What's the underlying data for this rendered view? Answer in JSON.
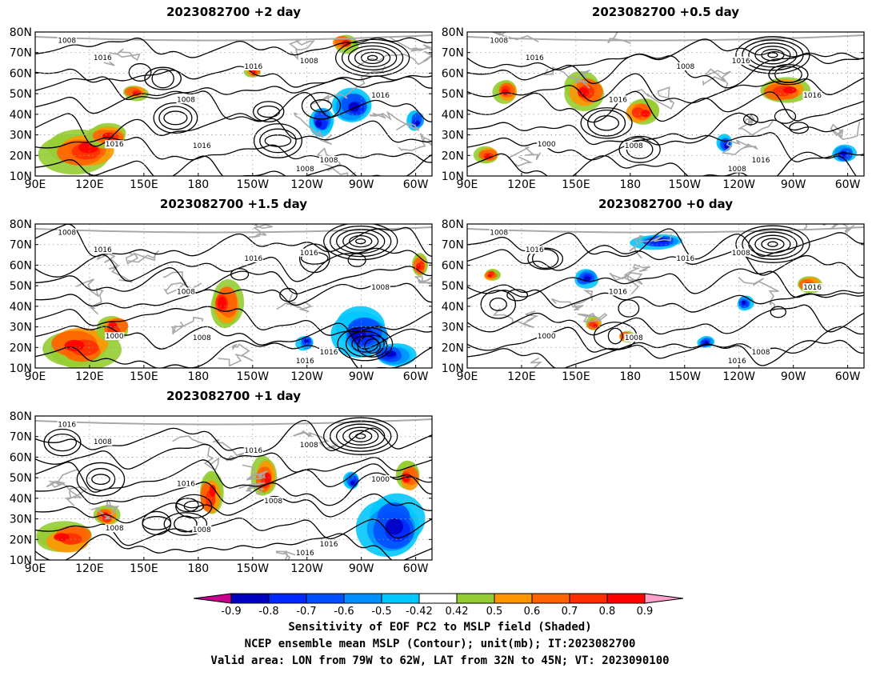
{
  "panels": [
    {
      "title": "2023082700  +2 day"
    },
    {
      "title": "2023082700  +0.5 day"
    },
    {
      "title": "2023082700  +1.5 day"
    },
    {
      "title": "2023082700  +0 day"
    },
    {
      "title": "2023082700  +1 day"
    }
  ],
  "axes": {
    "lat_ticks": [
      "10N",
      "20N",
      "30N",
      "40N",
      "50N",
      "60N",
      "70N",
      "80N"
    ],
    "lon_ticks": [
      "90E",
      "120E",
      "150E",
      "180",
      "150W",
      "120W",
      "90W",
      "60W"
    ]
  },
  "colorbar": {
    "labels": [
      "-0.9",
      "-0.8",
      "-0.7",
      "-0.6",
      "-0.5",
      "-0.42",
      "0.42",
      "0.5",
      "0.6",
      "0.7",
      "0.8",
      "0.9"
    ],
    "colors": [
      "#c8008c",
      "#0000c0",
      "#0028ff",
      "#0050ff",
      "#0090ff",
      "#00c8ff",
      "#ffffff",
      "#96cd32",
      "#ff9600",
      "#ff6400",
      "#ff2d00",
      "#ff0000",
      "#ffa0c8"
    ]
  },
  "captions": {
    "line1": "Sensitivity of EOF PC2 to MSLP field (Shaded)",
    "line2": "NCEP ensemble mean MSLP (Contour); unit(mb); IT:2023082700",
    "line3": "Valid area: LON from 79W to 62W, LAT from 32N to 45N; VT: 2023090100"
  },
  "chart_data": [
    {
      "type": "heatmap",
      "title": "2023082700  +2 day",
      "x_range": [
        "90E",
        "60W"
      ],
      "y_range": [
        "10N",
        "80N"
      ],
      "contour_labels": [
        "1008",
        "1016",
        "1016",
        "1008",
        "1016",
        "1008",
        "1016",
        "1008",
        "1008",
        "1016"
      ]
    },
    {
      "type": "heatmap",
      "title": "2023082700  +0.5 day",
      "x_range": [
        "90E",
        "60W"
      ],
      "y_range": [
        "10N",
        "80N"
      ],
      "contour_labels": [
        "1008",
        "1016",
        "1008",
        "1016",
        "1016",
        "1016",
        "1000",
        "1016",
        "1008",
        "1008"
      ]
    },
    {
      "type": "heatmap",
      "title": "2023082700  +1.5 day",
      "x_range": [
        "90E",
        "60W"
      ],
      "y_range": [
        "10N",
        "80N"
      ],
      "contour_labels": [
        "1008",
        "1016",
        "1016",
        "1016",
        "1008",
        "1008",
        "1000",
        "1016",
        "1016",
        "1008"
      ]
    },
    {
      "type": "heatmap",
      "title": "2023082700  +0 day",
      "x_range": [
        "90E",
        "60W"
      ],
      "y_range": [
        "10N",
        "80N"
      ],
      "contour_labels": [
        "1008",
        "1016",
        "1016",
        "1008",
        "1016",
        "1016",
        "1000",
        "1008",
        "1016",
        "1008"
      ]
    },
    {
      "type": "heatmap",
      "title": "2023082700  +1 day",
      "x_range": [
        "90E",
        "60W"
      ],
      "y_range": [
        "10N",
        "80N"
      ],
      "contour_labels": [
        "1016",
        "1008",
        "1016",
        "1008",
        "1000",
        "1016",
        "1008",
        "1016",
        "1016",
        "1008",
        "1008"
      ]
    }
  ]
}
